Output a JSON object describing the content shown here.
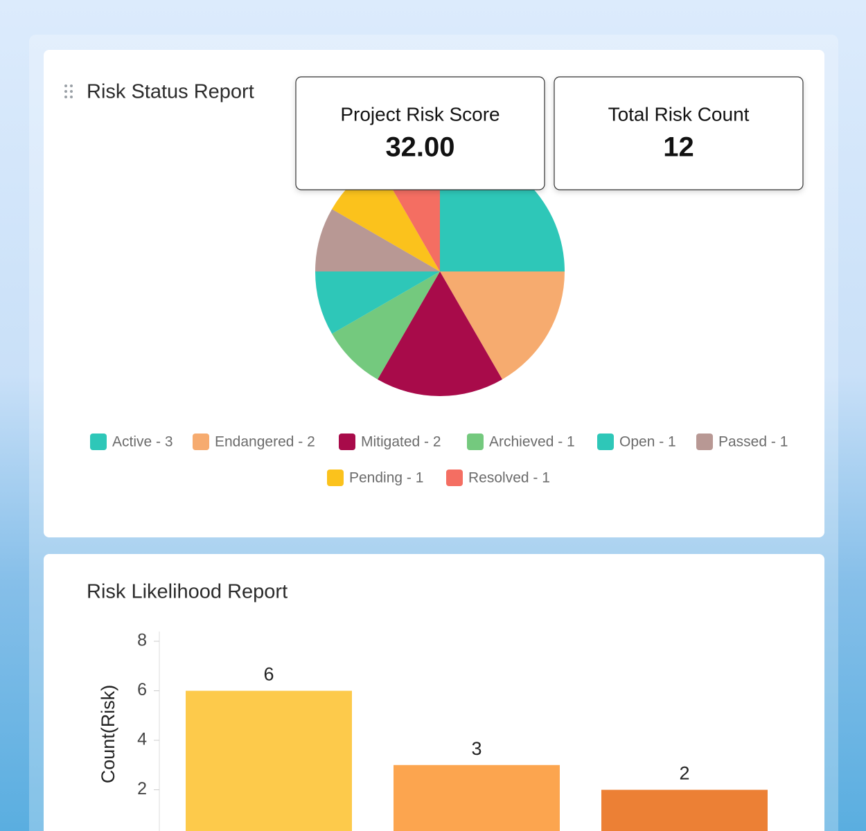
{
  "cards": [
    {
      "label": "Project Risk Score",
      "value": "32.00"
    },
    {
      "label": "Total Risk Count",
      "value": "12"
    }
  ],
  "chart_data": [
    {
      "type": "pie",
      "title": "Risk Status Report",
      "categories": [
        "Active - 3",
        "Endangered - 2",
        "Mitigated - 2",
        "Archieved - 1",
        "Open - 1",
        "Passed - 1",
        "Pending - 1",
        "Resolved - 1"
      ],
      "values": [
        3,
        2,
        2,
        1,
        1,
        1,
        1,
        1
      ],
      "colors": [
        "#2ec7b8",
        "#f6ab6f",
        "#a80b4a",
        "#74c97e",
        "#2ec7b8",
        "#b89894",
        "#fbc21c",
        "#f46e62"
      ]
    },
    {
      "type": "bar",
      "title": "Risk Likelihood Report",
      "y_label": "Count(Risk)",
      "categories": [
        null,
        null,
        null
      ],
      "values": [
        6,
        3,
        2
      ],
      "colors": [
        "#fdca4b",
        "#fca54f",
        "#ec8035"
      ],
      "ylim": [
        0,
        8
      ],
      "yticks": [
        2,
        4,
        6,
        8
      ]
    }
  ]
}
